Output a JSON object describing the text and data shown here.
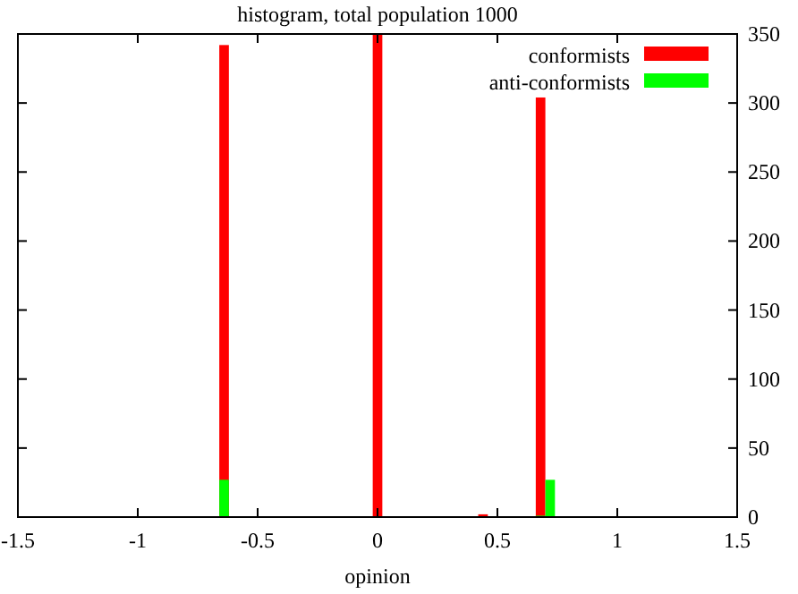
{
  "chart_data": {
    "type": "histogram",
    "title": "histogram, total population 1000",
    "xlabel": "opinion",
    "bins": [
      -0.7,
      -0.66,
      -0.62,
      -0.58,
      -0.54,
      -0.5,
      -0.46,
      -0.42,
      -0.38,
      -0.34,
      -0.3,
      -0.26,
      -0.22,
      -0.18,
      -0.14,
      -0.1,
      -0.06,
      -0.02,
      0.02,
      0.06,
      0.1,
      0.14,
      0.18,
      0.22,
      0.26,
      0.3,
      0.34,
      0.38,
      0.42,
      0.46,
      0.5,
      0.54,
      0.58,
      0.62,
      0.66,
      0.7,
      0.74
    ],
    "series": [
      {
        "name": "conformists",
        "color": "#ff0000",
        "values": [
          0,
          342,
          0,
          0,
          0,
          0,
          0,
          0,
          0,
          0,
          0,
          0,
          0,
          0,
          0,
          0,
          0,
          350,
          0,
          0,
          0,
          0,
          0,
          0,
          0,
          0,
          0,
          0,
          2,
          0,
          0,
          0,
          0,
          0,
          304,
          0
        ]
      },
      {
        "name": "anti-conformists",
        "color": "#00ff00",
        "values": [
          0,
          27,
          0,
          0,
          0,
          0,
          0,
          0,
          0,
          0,
          0,
          0,
          0,
          0,
          0,
          0,
          0,
          0,
          0,
          0,
          0,
          0,
          0,
          0,
          0,
          0,
          0,
          0,
          0,
          0,
          0,
          0,
          0,
          0,
          1,
          27
        ]
      }
    ],
    "xlim": [
      -1.5,
      1.5
    ],
    "xticks": [
      -1.5,
      -1,
      -0.5,
      0,
      0.5,
      1,
      1.5
    ],
    "ylim": [
      0,
      350
    ],
    "yticks": [
      0,
      50,
      100,
      150,
      200,
      250,
      300,
      350
    ],
    "legend": "top right"
  }
}
